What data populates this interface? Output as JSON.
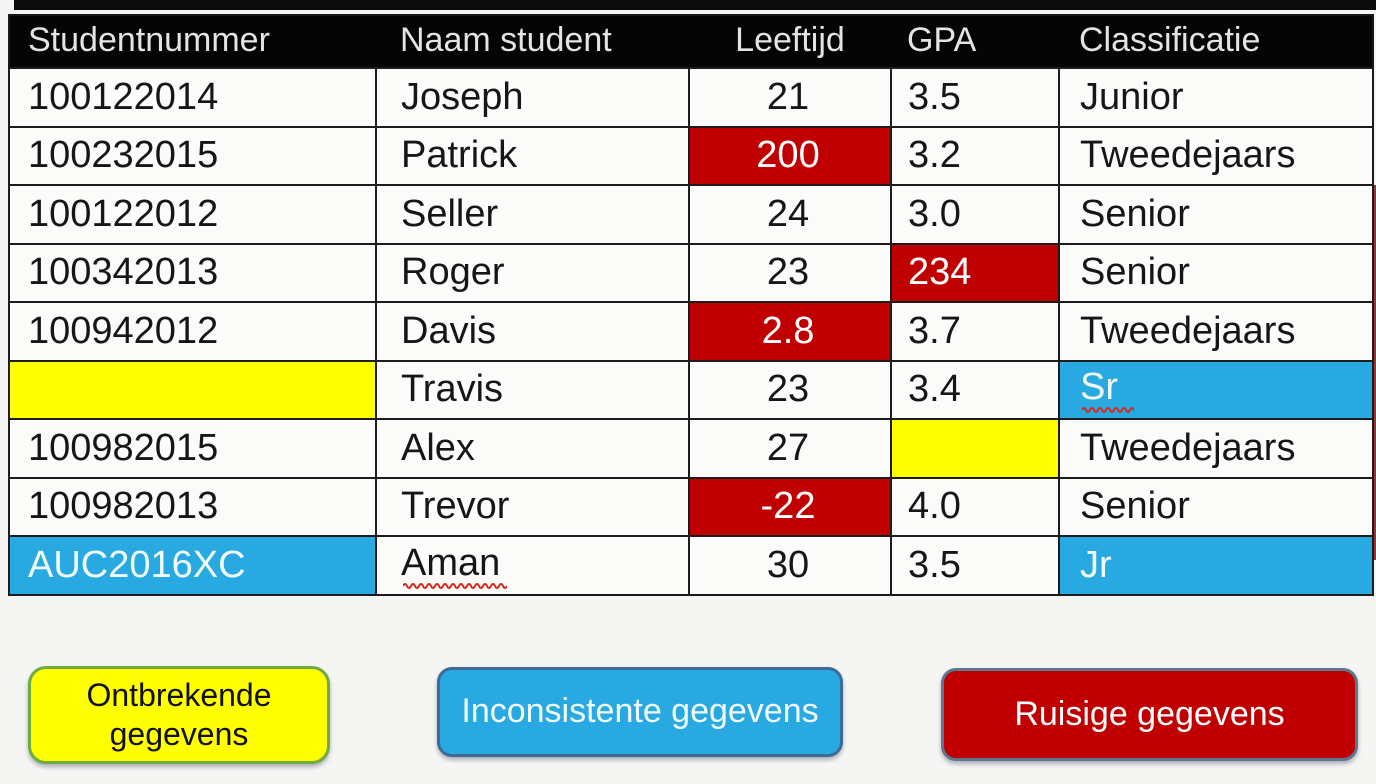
{
  "colors": {
    "page_bg": "#f5f5f3",
    "header_bg": "#050505",
    "header_text": "#e4e4e4",
    "cell_text": "#161616",
    "grid_line": "#1c1c1c",
    "noisy_bg": "#c00000",
    "noisy_text": "#ffffff",
    "missing_bg": "#ffff00",
    "inconsistent_bg": "#29a9e1",
    "inconsistent_text": "#f2fbff",
    "squiggle_red": "#cf2e20"
  },
  "table": {
    "columns": [
      "Studentnummer",
      "Naam student",
      "Leeftijd",
      "GPA",
      "Classificatie"
    ],
    "column_keys": [
      "studentnummer",
      "naam-student",
      "leeftijd",
      "gpa",
      "classificatie"
    ],
    "rows": [
      {
        "cells": [
          {
            "text": "100122014"
          },
          {
            "text": "Joseph"
          },
          {
            "text": "21"
          },
          {
            "text": "3.5"
          },
          {
            "text": "Junior"
          }
        ]
      },
      {
        "cells": [
          {
            "text": "100232015"
          },
          {
            "text": "Patrick"
          },
          {
            "text": "200",
            "flag": "noisy"
          },
          {
            "text": "3.2"
          },
          {
            "text": "Tweedejaars"
          }
        ]
      },
      {
        "cells": [
          {
            "text": "100122012"
          },
          {
            "text": "Seller"
          },
          {
            "text": "24"
          },
          {
            "text": "3.0"
          },
          {
            "text": "Senior"
          }
        ]
      },
      {
        "cells": [
          {
            "text": "100342013"
          },
          {
            "text": "Roger"
          },
          {
            "text": "23"
          },
          {
            "text": "234",
            "flag": "noisy"
          },
          {
            "text": "Senior"
          }
        ]
      },
      {
        "cells": [
          {
            "text": "100942012"
          },
          {
            "text": "Davis"
          },
          {
            "text": "2.8",
            "flag": "noisy"
          },
          {
            "text": "3.7"
          },
          {
            "text": "Tweedejaars"
          }
        ]
      },
      {
        "cells": [
          {
            "text": "",
            "flag": "missing"
          },
          {
            "text": "Travis"
          },
          {
            "text": "23"
          },
          {
            "text": "3.4"
          },
          {
            "text": "Sr",
            "flag": "inconsistent",
            "spellcheck": true
          }
        ]
      },
      {
        "cells": [
          {
            "text": "100982015"
          },
          {
            "text": "Alex"
          },
          {
            "text": "27"
          },
          {
            "text": "",
            "flag": "missing"
          },
          {
            "text": "Tweedejaars"
          }
        ]
      },
      {
        "cells": [
          {
            "text": "100982013"
          },
          {
            "text": "Trevor"
          },
          {
            "text": "-22",
            "flag": "noisy"
          },
          {
            "text": "4.0"
          },
          {
            "text": "Senior"
          }
        ]
      },
      {
        "cells": [
          {
            "text": "AUC2016XC",
            "flag": "inconsistent"
          },
          {
            "text": "Aman",
            "spellcheck": true
          },
          {
            "text": "30"
          },
          {
            "text": "3.5"
          },
          {
            "text": "Jr",
            "flag": "inconsistent"
          }
        ]
      }
    ]
  },
  "legend": [
    {
      "key": "missing",
      "label": "Ontbrekende gegevens",
      "bg": "#ffff00",
      "border": "#6faa44",
      "text": "#111111"
    },
    {
      "key": "inconsistent",
      "label": "Inconsistente gegevens",
      "bg": "#29a9e1",
      "border": "#3d6a96",
      "text": "#f2fbff"
    },
    {
      "key": "noisy",
      "label": "Ruisige gegevens",
      "bg": "#c00000",
      "border": "#5c7693",
      "text": "#ffffff"
    }
  ]
}
